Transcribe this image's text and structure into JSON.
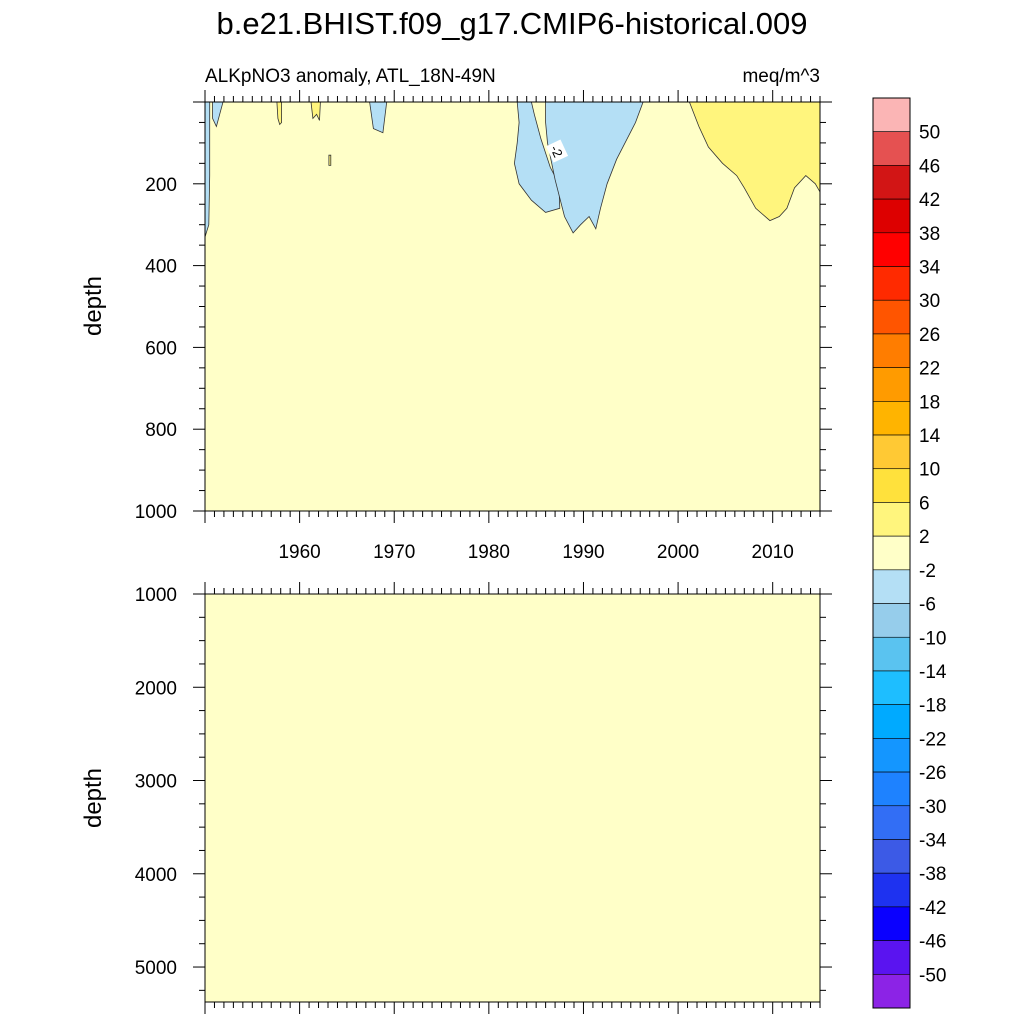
{
  "chart_data": {
    "type": "heatmap",
    "title": "b.e21.BHIST.f09_g17.CMIP6-historical.009",
    "subtitle_left": "ALKpNO3 anomaly, ATL_18N-49N",
    "subtitle_right": "meq/m^3",
    "xlabel": "",
    "x_range": [
      1950,
      2015
    ],
    "x_ticks": [
      1960,
      1970,
      1980,
      1990,
      2000,
      2010
    ],
    "panels": [
      {
        "name": "upper-ocean",
        "ylabel": "depth",
        "y_range": [
          0,
          1000
        ],
        "y_ticks": [
          200,
          400,
          600,
          800,
          1000
        ],
        "background_level": "-2 to 2",
        "regions": [
          {
            "name": "left-edge-negative",
            "level": "-6 to -2",
            "points": [
              [
                1950,
                0
              ],
              [
                1950.5,
                0
              ],
              [
                1950.5,
                50
              ],
              [
                1950.5,
                180
              ],
              [
                1950.4,
                300
              ],
              [
                1950,
                330
              ]
            ]
          },
          {
            "name": "small-negative-1952",
            "level": "-6 to -2",
            "points": [
              [
                1950.8,
                0
              ],
              [
                1951.9,
                0
              ],
              [
                1951.2,
                60
              ],
              [
                1950.8,
                40
              ]
            ]
          },
          {
            "name": "small-negative-1968",
            "level": "-6 to -2",
            "points": [
              [
                1967.4,
                0
              ],
              [
                1969.2,
                0
              ],
              [
                1968.8,
                75
              ],
              [
                1967.8,
                65
              ]
            ]
          },
          {
            "name": "negative-1983",
            "level": "-6 to -2",
            "points": [
              [
                1983,
                0
              ],
              [
                1984.5,
                0
              ],
              [
                1984.8,
                30
              ],
              [
                1985.5,
                90
              ],
              [
                1986.5,
                160
              ],
              [
                1987.4,
                200
              ],
              [
                1987.5,
                260
              ],
              [
                1986,
                270
              ],
              [
                1984.5,
                240
              ],
              [
                1983.2,
                200
              ],
              [
                1982.7,
                150
              ],
              [
                1983,
                100
              ],
              [
                1983.2,
                50
              ]
            ]
          },
          {
            "name": "negative-1990",
            "level": "-6 to -2",
            "points": [
              [
                1986,
                0
              ],
              [
                1996.3,
                0
              ],
              [
                1995.5,
                50
              ],
              [
                1993.5,
                140
              ],
              [
                1992.5,
                200
              ],
              [
                1991.8,
                260
              ],
              [
                1991.3,
                310
              ],
              [
                1990.6,
                280
              ],
              [
                1989.7,
                300
              ],
              [
                1988.9,
                320
              ],
              [
                1988,
                280
              ],
              [
                1987,
                190
              ],
              [
                1986.2,
                100
              ],
              [
                1986,
                50
              ]
            ]
          },
          {
            "name": "positive-1957",
            "level": "2 to 6",
            "points": [
              [
                1957.6,
                0
              ],
              [
                1958.1,
                0
              ],
              [
                1958.1,
                50
              ],
              [
                1957.9,
                55
              ],
              [
                1957.7,
                40
              ]
            ]
          },
          {
            "name": "positive-1962",
            "level": "2 to 6",
            "points": [
              [
                1961.2,
                0
              ],
              [
                1962.2,
                0
              ],
              [
                1962.1,
                45
              ],
              [
                1961.8,
                30
              ],
              [
                1961.4,
                40
              ]
            ]
          },
          {
            "name": "positive-1963",
            "level": "2 to 6",
            "points": [
              [
                1963.1,
                130
              ],
              [
                1963.3,
                130
              ],
              [
                1963.3,
                155
              ],
              [
                1963.1,
                155
              ]
            ]
          },
          {
            "name": "positive-2006",
            "level": "2 to 6",
            "points": [
              [
                2001.2,
                0
              ],
              [
                2015,
                0
              ],
              [
                2015,
                220
              ],
              [
                2014.5,
                200
              ],
              [
                2013.5,
                180
              ],
              [
                2012.3,
                210
              ],
              [
                2011.5,
                260
              ],
              [
                2010.7,
                280
              ],
              [
                2009.7,
                290
              ],
              [
                2008.2,
                260
              ],
              [
                2007,
                210
              ],
              [
                2006.2,
                180
              ],
              [
                2004.7,
                150
              ],
              [
                2003.2,
                110
              ],
              [
                2002.2,
                60
              ]
            ]
          }
        ],
        "contour_label": {
          "text": "-2",
          "x": 1987.2,
          "y": 120
        }
      },
      {
        "name": "deep-ocean",
        "ylabel": "depth",
        "y_range": [
          1000,
          5375
        ],
        "y_ticks": [
          1000,
          2000,
          3000,
          4000,
          5000
        ],
        "background_level": "-2 to 2",
        "regions": []
      }
    ],
    "colorbar": {
      "labels": [
        "50",
        "46",
        "42",
        "38",
        "34",
        "30",
        "26",
        "22",
        "18",
        "14",
        "10",
        "6",
        "2",
        "-2",
        "-6",
        "-10",
        "-14",
        "-18",
        "-22",
        "-26",
        "-30",
        "-34",
        "-38",
        "-42",
        "-46",
        "-50"
      ],
      "colors": [
        "#fbb5b5",
        "#e55151",
        "#d21515",
        "#dd0000",
        "#ff0000",
        "#ff2a00",
        "#ff5500",
        "#ff7d00",
        "#ff9b00",
        "#ffb400",
        "#ffc934",
        "#ffe13c",
        "#fff57d",
        "#ffffc8",
        "#b4dff5",
        "#96cdeb",
        "#5ac3f0",
        "#1ebeff",
        "#00aaff",
        "#1496ff",
        "#1e82ff",
        "#326ef5",
        "#3c5ae6",
        "#1e32f0",
        "#0a00ff",
        "#5a14f0",
        "#8c23e6"
      ]
    },
    "level_colors": {
      "-6 to -2": "#b4dff5",
      "-2 to 2": "#ffffc8",
      "2 to 6": "#fff57d"
    }
  }
}
